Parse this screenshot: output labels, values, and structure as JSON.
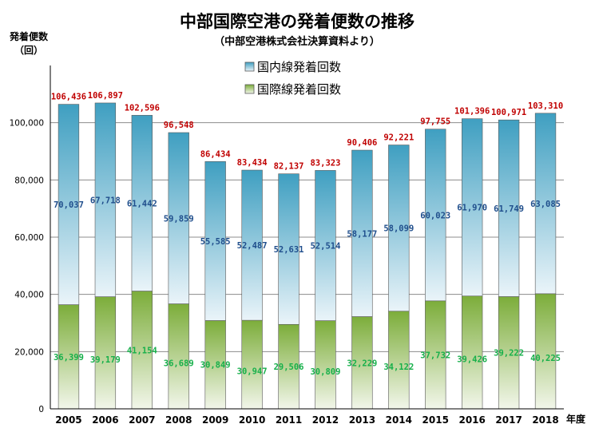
{
  "chart_data": {
    "type": "bar",
    "stacked": true,
    "title": "中部国際空港の発着便数の推移",
    "subtitle": "（中部空港株式会社決算資料より）",
    "ylabel_line1": "発着便数",
    "ylabel_line2": "（回）",
    "xlabel": "年度",
    "categories": [
      "2005",
      "2006",
      "2007",
      "2008",
      "2009",
      "2010",
      "2011",
      "2012",
      "2013",
      "2014",
      "2015",
      "2016",
      "2017",
      "2018"
    ],
    "series": [
      {
        "name": "国際線発着回数",
        "values": [
          36399,
          39179,
          41154,
          36689,
          30849,
          30947,
          29506,
          30809,
          32229,
          34122,
          37732,
          39426,
          39222,
          40225
        ],
        "labels": [
          "36,399",
          "39,179",
          "41,154",
          "36,689",
          "30,849",
          "30,947",
          "29,506",
          "30,809",
          "32,229",
          "34,122",
          "37,732",
          "39,426",
          "39,222",
          "40,225"
        ],
        "color_top": "#7cad3a",
        "color_bottom": "#f2f6ea",
        "label_color": "#16b04a"
      },
      {
        "name": "国内線発着回数",
        "values": [
          70037,
          67718,
          61442,
          59859,
          55585,
          52487,
          52631,
          52514,
          58177,
          58099,
          60023,
          61970,
          61749,
          63085
        ],
        "labels": [
          "70,037",
          "67,718",
          "61,442",
          "59,859",
          "55,585",
          "52,487",
          "52,631",
          "52,514",
          "58,177",
          "58,099",
          "60,023",
          "61,970",
          "61,749",
          "63,085"
        ],
        "color_top": "#3f9fc1",
        "color_bottom": "#eaf4f9",
        "label_color": "#1f4e8c"
      }
    ],
    "totals": [
      106436,
      106897,
      102596,
      96548,
      86434,
      83434,
      82137,
      83323,
      90406,
      92221,
      97755,
      101396,
      100971,
      103310
    ],
    "total_labels": [
      "106,436",
      "106,897",
      "102,596",
      "96,548",
      "86,434",
      "83,434",
      "82,137",
      "83,323",
      "90,406",
      "92,221",
      "97,755",
      "101,396",
      "100,971",
      "103,310"
    ],
    "total_label_color": "#c00000",
    "ylim": [
      0,
      120000
    ],
    "yticks": [
      0,
      20000,
      40000,
      60000,
      80000,
      100000
    ],
    "ytick_labels": [
      "0",
      "20,000",
      "40,000",
      "60,000",
      "80,000",
      "100,000"
    ],
    "grid": true,
    "legend_position": "top-center",
    "legend_order": [
      "国内線発着回数",
      "国際線発着回数"
    ]
  }
}
